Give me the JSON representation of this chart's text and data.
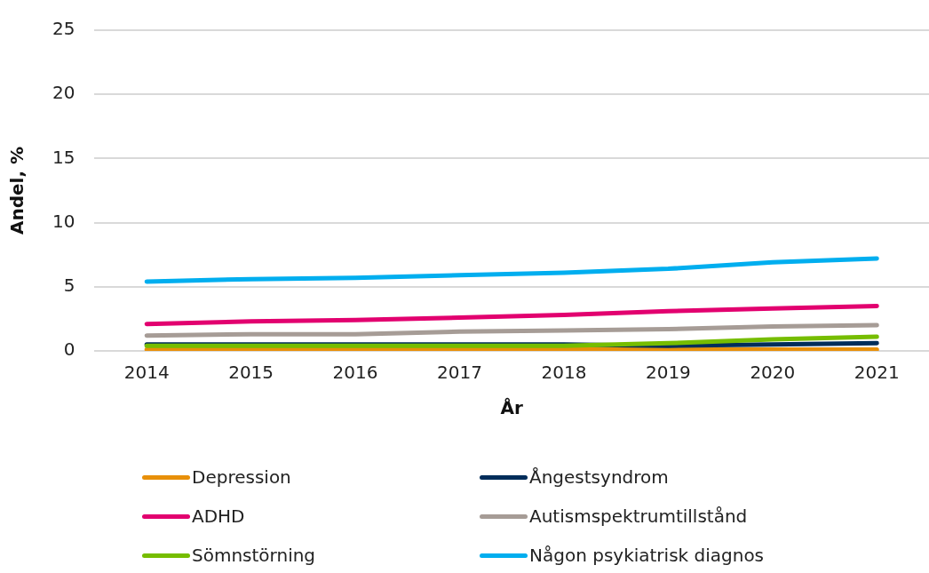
{
  "chart_data": {
    "type": "line",
    "xlabel": "År",
    "ylabel": "Andel, %",
    "categories": [
      "2014",
      "2015",
      "2016",
      "2017",
      "2018",
      "2019",
      "2020",
      "2021"
    ],
    "series": [
      {
        "name": "Depression",
        "color": "#e8900a",
        "values": [
          0.1,
          0.1,
          0.1,
          0.1,
          0.1,
          0.1,
          0.1,
          0.1
        ]
      },
      {
        "name": "Ångestsyndrom",
        "color": "#002d5a",
        "values": [
          0.5,
          0.5,
          0.5,
          0.5,
          0.5,
          0.4,
          0.5,
          0.6
        ]
      },
      {
        "name": "ADHD",
        "color": "#e2006f",
        "values": [
          2.1,
          2.3,
          2.4,
          2.6,
          2.8,
          3.1,
          3.3,
          3.5
        ]
      },
      {
        "name": "Autismspektrumtillstånd",
        "color": "#a69c96",
        "values": [
          1.2,
          1.3,
          1.3,
          1.5,
          1.6,
          1.7,
          1.9,
          2.0
        ]
      },
      {
        "name": "Sömnstörning",
        "color": "#76bd00",
        "values": [
          0.4,
          0.4,
          0.4,
          0.4,
          0.4,
          0.6,
          0.9,
          1.1
        ]
      },
      {
        "name": "Någon psykiatrisk diagnos",
        "color": "#00aeef",
        "values": [
          5.4,
          5.6,
          5.7,
          5.9,
          6.1,
          6.4,
          6.9,
          7.2
        ]
      }
    ],
    "ylim": [
      0,
      25
    ],
    "yticks": [
      0,
      5,
      10,
      15,
      20,
      25
    ],
    "grid": "y",
    "legend": "bottom",
    "marker": "none",
    "line_style": "solid"
  }
}
